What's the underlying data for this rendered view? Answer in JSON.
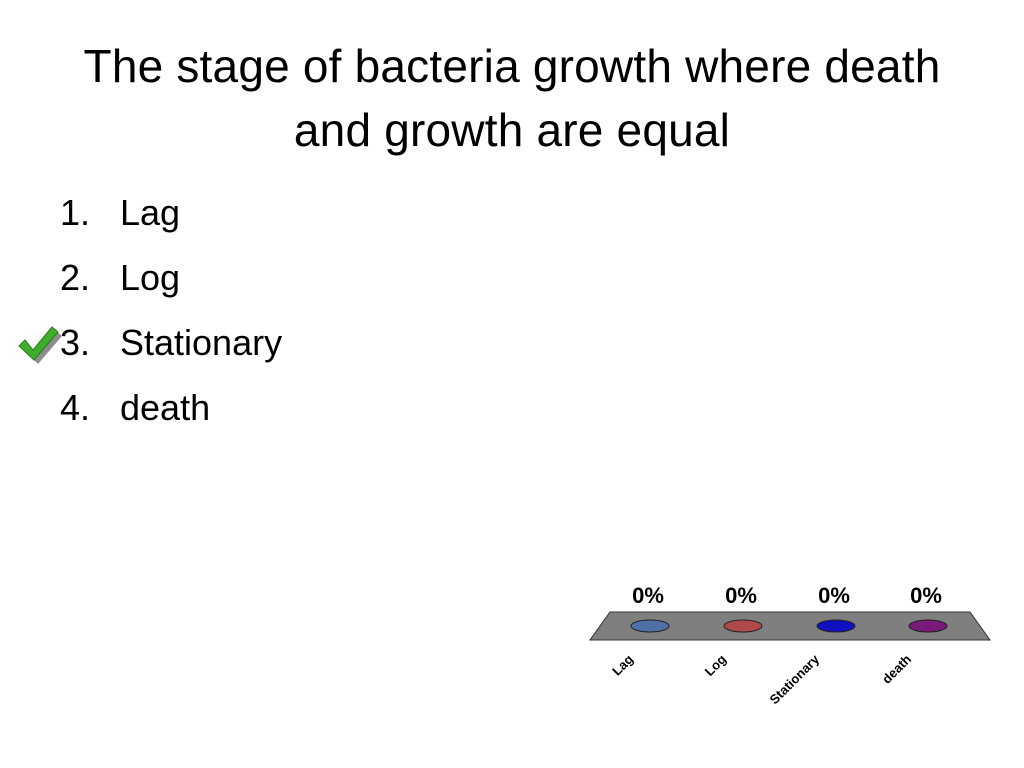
{
  "slide": {
    "title": "The stage of bacteria growth where death and growth are equal"
  },
  "answers": [
    {
      "number": "1.",
      "label": "Lag",
      "correct": false
    },
    {
      "number": "2.",
      "label": "Log",
      "correct": false
    },
    {
      "number": "3.",
      "label": "Stationary",
      "correct": true
    },
    {
      "number": "4.",
      "label": "death",
      "correct": false
    }
  ],
  "icons": {
    "correct_marker": "checkmark-icon"
  },
  "colors": {
    "check_green": "#3fae2a",
    "platform": "#7f7f7f",
    "series": [
      "#4f6fa8",
      "#b04a4a",
      "#1010c0",
      "#7a1a7a"
    ]
  },
  "chart_data": {
    "type": "bar",
    "categories": [
      "Lag",
      "Log",
      "Stationary",
      "death"
    ],
    "values": [
      0,
      0,
      0,
      0
    ],
    "data_labels": [
      "0%",
      "0%",
      "0%",
      "0%"
    ],
    "ylim": [
      0,
      100
    ],
    "grid": false,
    "legend": "none"
  }
}
